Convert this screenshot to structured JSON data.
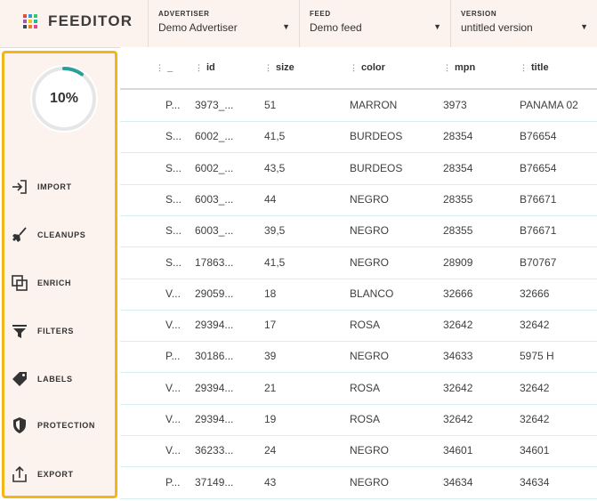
{
  "app": {
    "name": "FEEDITOR",
    "logo_colors": [
      "#e74c3c",
      "#3498db",
      "#2ecc71",
      "#9b59b6",
      "#f1c40f",
      "#1abc9c",
      "#34495e",
      "#e67e22",
      "#e84393"
    ]
  },
  "header": {
    "advertiser": {
      "label": "ADVERTISER",
      "value": "Demo Advertiser"
    },
    "feed": {
      "label": "FEED",
      "value": "Demo feed"
    },
    "version": {
      "label": "VERSION",
      "value": "untitled version"
    }
  },
  "sidebar": {
    "progress": {
      "label": "10%",
      "fraction": 0.1,
      "color": "#2aa198"
    },
    "items": [
      {
        "label": "IMPORT",
        "icon": "import-icon"
      },
      {
        "label": "CLEANUPS",
        "icon": "broom-icon"
      },
      {
        "label": "ENRICH",
        "icon": "layers-icon"
      },
      {
        "label": "FILTERS",
        "icon": "funnel-icon"
      },
      {
        "label": "LABELS",
        "icon": "tag-icon"
      },
      {
        "label": "PROTECTION",
        "icon": "shield-icon"
      },
      {
        "label": "EXPORT",
        "icon": "export-icon"
      }
    ]
  },
  "table": {
    "columns": [
      "_",
      "id",
      "size",
      "color",
      "mpn",
      "title"
    ],
    "rows": [
      [
        "P...",
        "3973_...",
        "51",
        "MARRON",
        "3973",
        "PANAMA 02"
      ],
      [
        "S...",
        "6002_...",
        "41,5",
        "BURDEOS",
        "28354",
        "B76654"
      ],
      [
        "S...",
        "6002_...",
        "43,5",
        "BURDEOS",
        "28354",
        "B76654"
      ],
      [
        "S...",
        "6003_...",
        "44",
        "NEGRO",
        "28355",
        "B76671"
      ],
      [
        "S...",
        "6003_...",
        "39,5",
        "NEGRO",
        "28355",
        "B76671"
      ],
      [
        "S...",
        "17863...",
        "41,5",
        "NEGRO",
        "28909",
        "B70767"
      ],
      [
        "V...",
        "29059...",
        "18",
        "BLANCO",
        "32666",
        "32666"
      ],
      [
        "V...",
        "29394...",
        "17",
        "ROSA",
        "32642",
        "32642"
      ],
      [
        "P...",
        "30186...",
        "39",
        "NEGRO",
        "34633",
        "5975 H"
      ],
      [
        "V...",
        "29394...",
        "21",
        "ROSA",
        "32642",
        "32642"
      ],
      [
        "V...",
        "29394...",
        "19",
        "ROSA",
        "32642",
        "32642"
      ],
      [
        "V...",
        "36233...",
        "24",
        "NEGRO",
        "34601",
        "34601"
      ],
      [
        "P...",
        "37149...",
        "43",
        "NEGRO",
        "34634",
        "34634"
      ]
    ]
  }
}
